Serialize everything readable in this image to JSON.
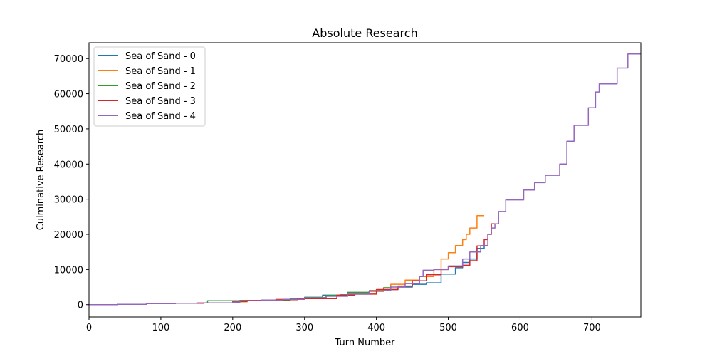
{
  "chart_data": {
    "type": "line",
    "title": "Absolute Research",
    "xlabel": "Turn Number",
    "ylabel": "Culminative Research",
    "xlim": [
      0,
      768
    ],
    "ylim": [
      -3500,
      74500
    ],
    "xticks": [
      0,
      100,
      200,
      300,
      400,
      500,
      600,
      700
    ],
    "yticks": [
      0,
      10000,
      20000,
      30000,
      40000,
      50000,
      60000,
      70000
    ],
    "xtick_labels": [
      "0",
      "100",
      "200",
      "300",
      "400",
      "500",
      "600",
      "700"
    ],
    "ytick_labels": [
      "0",
      "10000",
      "20000",
      "30000",
      "40000",
      "50000",
      "60000",
      "70000"
    ],
    "grid": false,
    "legend_position": "top-left",
    "step": true,
    "series": [
      {
        "name": "Sea of Sand - 0",
        "color": "#1f77b4",
        "points": [
          [
            0,
            0
          ],
          [
            40,
            100
          ],
          [
            80,
            300
          ],
          [
            120,
            400
          ],
          [
            150,
            500
          ],
          [
            200,
            700
          ],
          [
            210,
            1200
          ],
          [
            250,
            1300
          ],
          [
            280,
            1700
          ],
          [
            300,
            2100
          ],
          [
            325,
            2700
          ],
          [
            350,
            2800
          ],
          [
            370,
            3200
          ],
          [
            390,
            3800
          ],
          [
            410,
            4300
          ],
          [
            430,
            5000
          ],
          [
            450,
            5800
          ],
          [
            470,
            6200
          ],
          [
            490,
            8700
          ],
          [
            510,
            10500
          ],
          [
            520,
            12000
          ],
          [
            530,
            13000
          ],
          [
            540,
            16000
          ],
          [
            550,
            17000
          ]
        ]
      },
      {
        "name": "Sea of Sand - 1",
        "color": "#ff7f0e",
        "points": [
          [
            0,
            0
          ],
          [
            40,
            100
          ],
          [
            80,
            300
          ],
          [
            120,
            400
          ],
          [
            160,
            500
          ],
          [
            200,
            800
          ],
          [
            220,
            1200
          ],
          [
            260,
            1500
          ],
          [
            300,
            2000
          ],
          [
            330,
            2400
          ],
          [
            360,
            3000
          ],
          [
            390,
            3800
          ],
          [
            410,
            4800
          ],
          [
            420,
            5800
          ],
          [
            440,
            7000
          ],
          [
            460,
            8000
          ],
          [
            480,
            10000
          ],
          [
            490,
            13000
          ],
          [
            500,
            14800
          ],
          [
            510,
            16800
          ],
          [
            520,
            18500
          ],
          [
            525,
            20000
          ],
          [
            530,
            21800
          ],
          [
            540,
            25300
          ],
          [
            550,
            25300
          ]
        ]
      },
      {
        "name": "Sea of Sand - 2",
        "color": "#2ca02c",
        "points": [
          [
            0,
            0
          ],
          [
            40,
            100
          ],
          [
            80,
            300
          ],
          [
            120,
            400
          ],
          [
            150,
            500
          ],
          [
            165,
            1100
          ],
          [
            210,
            1200
          ],
          [
            250,
            1300
          ],
          [
            280,
            1600
          ],
          [
            300,
            2000
          ],
          [
            330,
            2600
          ],
          [
            360,
            3500
          ],
          [
            390,
            4000
          ],
          [
            410,
            4800
          ],
          [
            420,
            5200
          ]
        ]
      },
      {
        "name": "Sea of Sand - 3",
        "color": "#d62728",
        "points": [
          [
            0,
            0
          ],
          [
            40,
            100
          ],
          [
            80,
            300
          ],
          [
            120,
            400
          ],
          [
            160,
            500
          ],
          [
            200,
            900
          ],
          [
            220,
            1200
          ],
          [
            260,
            1400
          ],
          [
            290,
            1700
          ],
          [
            345,
            2700
          ],
          [
            370,
            3000
          ],
          [
            400,
            4300
          ],
          [
            430,
            5300
          ],
          [
            450,
            6800
          ],
          [
            470,
            8500
          ],
          [
            490,
            10000
          ],
          [
            500,
            10800
          ],
          [
            520,
            11200
          ],
          [
            530,
            12500
          ],
          [
            540,
            16700
          ],
          [
            550,
            18500
          ],
          [
            555,
            20000
          ],
          [
            560,
            23000
          ],
          [
            570,
            23000
          ]
        ]
      },
      {
        "name": "Sea of Sand - 4",
        "color": "#9467bd",
        "points": [
          [
            0,
            0
          ],
          [
            40,
            100
          ],
          [
            80,
            300
          ],
          [
            120,
            400
          ],
          [
            150,
            500
          ],
          [
            200,
            700
          ],
          [
            210,
            1100
          ],
          [
            240,
            1300
          ],
          [
            270,
            1500
          ],
          [
            300,
            1900
          ],
          [
            330,
            2400
          ],
          [
            360,
            3000
          ],
          [
            390,
            4000
          ],
          [
            420,
            5000
          ],
          [
            440,
            6000
          ],
          [
            460,
            8000
          ],
          [
            465,
            9800
          ],
          [
            480,
            10000
          ],
          [
            500,
            11000
          ],
          [
            520,
            13000
          ],
          [
            530,
            15000
          ],
          [
            545,
            16800
          ],
          [
            555,
            20000
          ],
          [
            560,
            21800
          ],
          [
            565,
            23000
          ],
          [
            570,
            26500
          ],
          [
            580,
            29800
          ],
          [
            605,
            32600
          ],
          [
            620,
            34700
          ],
          [
            635,
            36800
          ],
          [
            655,
            40000
          ],
          [
            665,
            46500
          ],
          [
            675,
            51000
          ],
          [
            695,
            56000
          ],
          [
            705,
            60500
          ],
          [
            710,
            62800
          ],
          [
            735,
            67300
          ],
          [
            750,
            71300
          ],
          [
            768,
            71300
          ]
        ]
      }
    ]
  }
}
